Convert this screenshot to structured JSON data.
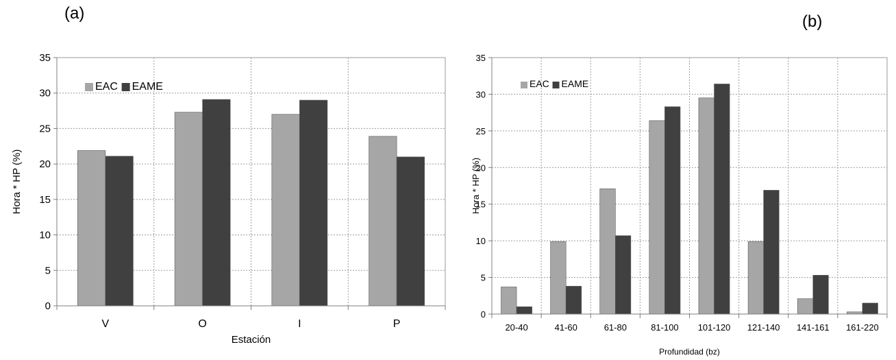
{
  "panel_labels": {
    "a": "(a)",
    "b": "(b)"
  },
  "colors": {
    "EAC": "#a6a6a6",
    "EAME": "#404040",
    "grid": "#9a9a9a",
    "axis": "#7f7f7f"
  },
  "chart_data": [
    {
      "type": "bar",
      "panel": "(a)",
      "xlabel": "Estación",
      "ylabel": "Hora * HP  (%)",
      "categories": [
        "V",
        "O",
        "I",
        "P"
      ],
      "series": [
        {
          "name": "EAC",
          "values": [
            21.9,
            27.3,
            27.0,
            23.9
          ]
        },
        {
          "name": "EAME",
          "values": [
            21.1,
            29.1,
            29.0,
            21.0
          ]
        }
      ],
      "ylim": [
        0,
        35
      ],
      "yticks": [
        "0",
        "5",
        "10",
        "15",
        "20",
        "25",
        "30",
        "35"
      ],
      "grid": true,
      "legend": "top-left"
    },
    {
      "type": "bar",
      "panel": "(b)",
      "xlabel": "Profundidad (bz)",
      "ylabel": "Hora * HP  (%)",
      "categories": [
        "20-40",
        "41-60",
        "61-80",
        "81-100",
        "101-120",
        "121-140",
        "141-161",
        "161-220"
      ],
      "series": [
        {
          "name": "EAC",
          "values": [
            3.7,
            9.9,
            17.1,
            26.4,
            29.5,
            9.9,
            2.1,
            0.3
          ]
        },
        {
          "name": "EAME",
          "values": [
            1.0,
            3.8,
            10.7,
            28.3,
            31.4,
            16.9,
            5.3,
            1.5
          ]
        }
      ],
      "ylim": [
        0,
        35
      ],
      "yticks": [
        "0",
        "5",
        "10",
        "15",
        "20",
        "25",
        "30",
        "35"
      ],
      "grid": true,
      "legend": "top-left"
    }
  ]
}
